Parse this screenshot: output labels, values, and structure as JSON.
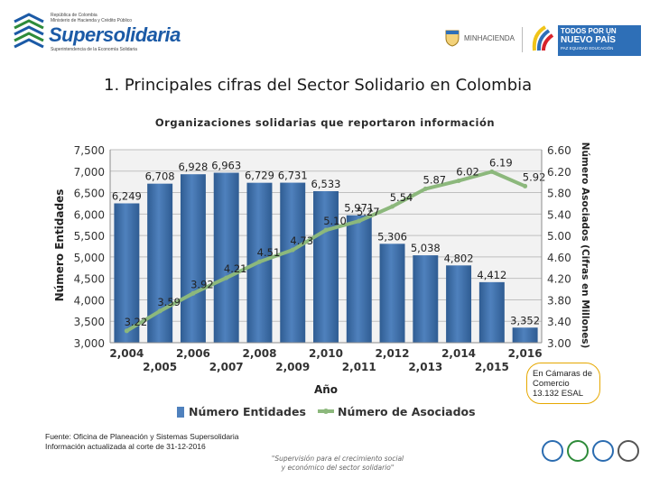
{
  "header": {
    "logo_line1": "República de Colombia",
    "logo_line2": "Ministerio de Hacienda y Crédito Público",
    "logo_name": "Supersolidaria",
    "logo_subtitle": "Superintendencia de la Economía Solidaria",
    "ministry_label": "MINHACIENDA",
    "nuevo_pais_line1": "TODOS POR UN",
    "nuevo_pais_line2": "NUEVO PAÍS",
    "nuevo_pais_line3": "PAZ  EQUIDAD  EDUCACIÓN"
  },
  "page_title": "1. Principales cifras del Sector Solidario en Colombia",
  "chart_data": {
    "type": "bar",
    "title": "Organizaciones solidarias que reportaron información",
    "xlabel": "Año",
    "ylabel": "Número Entidades",
    "y2label": "Número Asociados (Cifras en Millones)",
    "categories": [
      "2,004",
      "2,005",
      "2,006",
      "2,007",
      "2,008",
      "2,009",
      "2,010",
      "2,011",
      "2,012",
      "2,013",
      "2,014",
      "2,015",
      "2,016"
    ],
    "ylim": [
      3000,
      7500
    ],
    "yticks": [
      "3,000",
      "3,500",
      "4,000",
      "4,500",
      "5,000",
      "5,500",
      "6,000",
      "6,500",
      "7,000",
      "7,500"
    ],
    "y2lim": [
      3.0,
      6.6
    ],
    "y2ticks": [
      "3.00",
      "3.40",
      "3.80",
      "4.20",
      "4.60",
      "5.00",
      "5.40",
      "5.80",
      "6.20",
      "6.60"
    ],
    "series": [
      {
        "name": "Número Entidades",
        "type": "bar",
        "axis": "left",
        "values": [
          6249,
          6708,
          6928,
          6963,
          6729,
          6731,
          6533,
          5971,
          5306,
          5038,
          4802,
          4412,
          3352
        ],
        "labels": [
          "6,249",
          "6,708",
          "6,928",
          "6,963",
          "6,729",
          "6,731",
          "6,533",
          "5,971",
          "5,306",
          "5,038",
          "4,802",
          "4,412",
          "3,352"
        ]
      },
      {
        "name": "Número de Asociados",
        "type": "line",
        "axis": "right",
        "values": [
          3.22,
          3.59,
          3.92,
          4.21,
          4.51,
          4.73,
          5.1,
          5.27,
          5.54,
          5.87,
          6.02,
          6.19,
          5.92
        ],
        "labels": [
          "3.22",
          "3.59",
          "3.92",
          "4.21",
          "4.51",
          "4.73",
          "5.10",
          "5.27",
          "5.54",
          "5.87",
          "6.02",
          "6.19",
          "5.92"
        ]
      }
    ],
    "legend": [
      "Número Entidades",
      "Número de Asociados"
    ],
    "legend_position": "bottom",
    "colors": {
      "bar": "#4f81bd",
      "bar_dark": "#2f5c92",
      "line": "#8cb87c",
      "grid": "#bfbfbf",
      "plot_bg": "#f2f2f2"
    }
  },
  "note": {
    "line1": "En Cámaras de",
    "line2": "Comercio",
    "line3": "13.132 ESAL"
  },
  "source": {
    "line1": "Fuente: Oficina de Planeación y Sistemas Supersolidaria",
    "line2": "Información actualizada al corte de 31-12-2016"
  },
  "slogan": {
    "line1": "\"Supervisión para el crecimiento social",
    "line2": "y económico del sector solidario\""
  }
}
